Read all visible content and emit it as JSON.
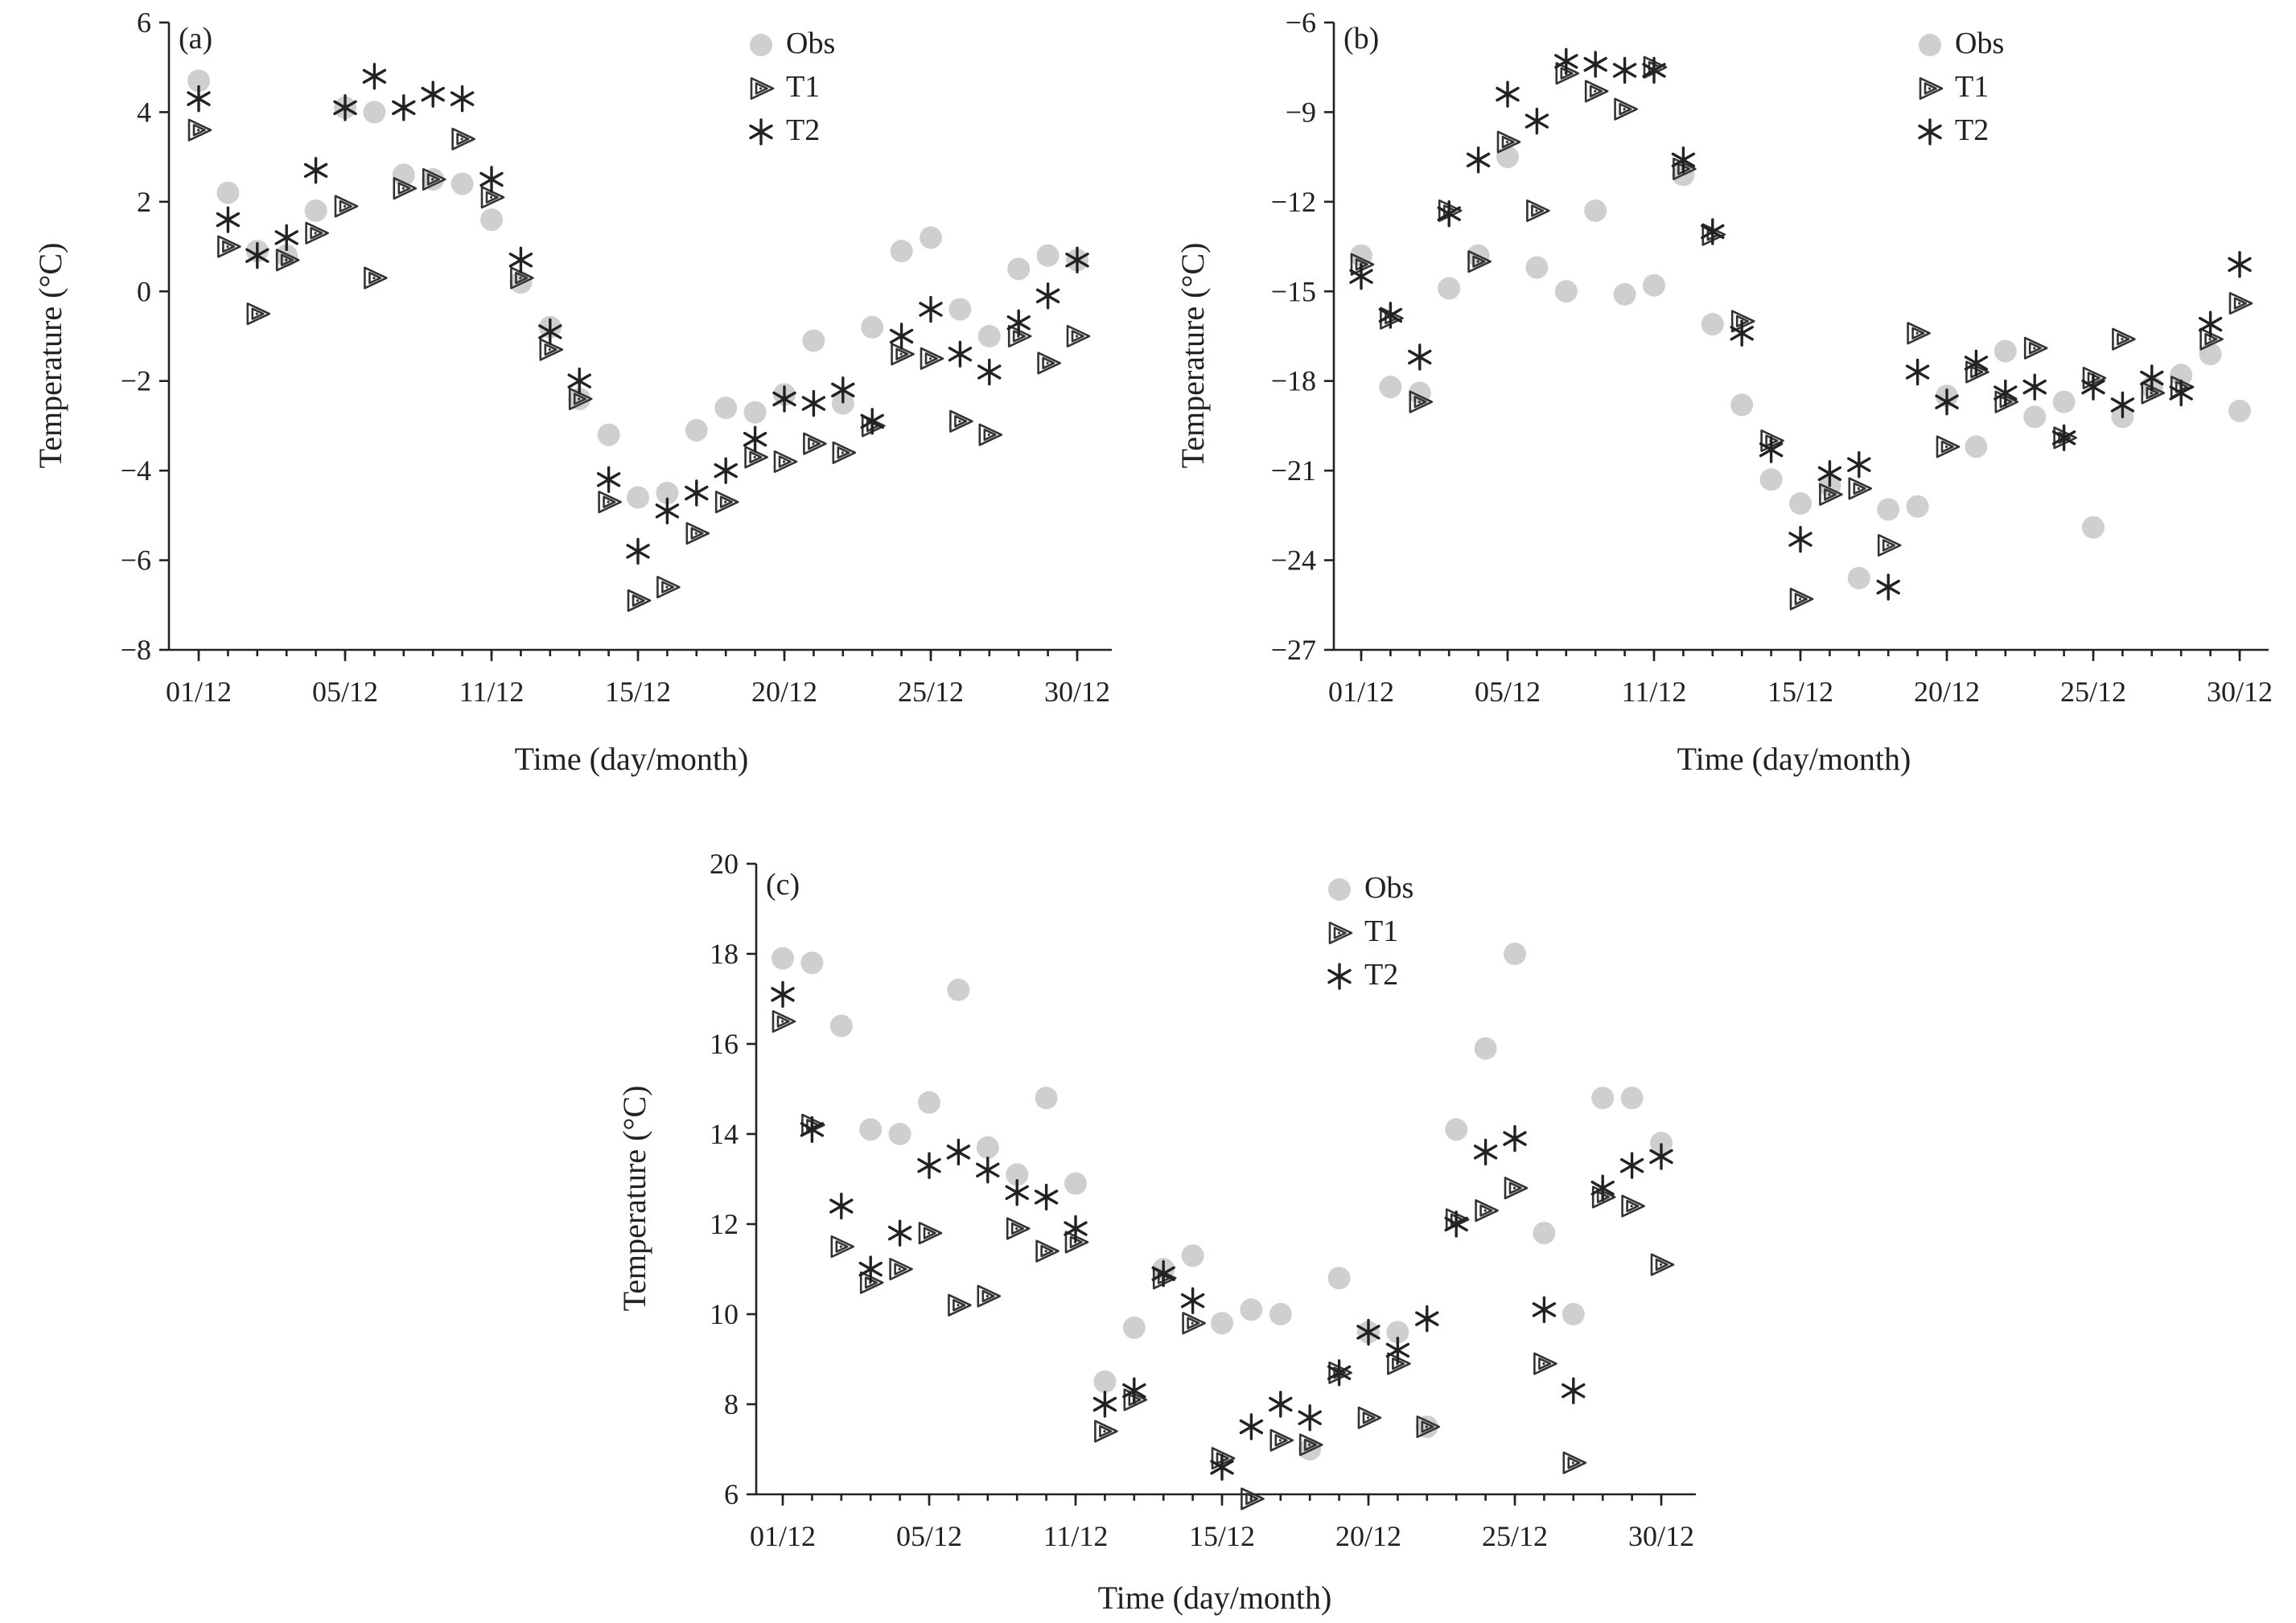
{
  "chart_data": [
    {
      "type": "scatter",
      "panel_label": "(a)",
      "xlabel": "Time (day/month)",
      "ylabel": "Temperature (°C)",
      "ylim": [
        -8,
        6
      ],
      "yticks": [
        "6",
        "4",
        "2",
        "0",
        "−2",
        "−4",
        "−6",
        "−8"
      ],
      "ytick_values": [
        6,
        4,
        2,
        0,
        -2,
        -4,
        -6,
        -8
      ],
      "xticks": [
        "01/12",
        "05/12",
        "11/12",
        "15/12",
        "20/12",
        "25/12",
        "30/12"
      ],
      "legend": [
        "Obs",
        "T1",
        "T2"
      ],
      "legend_position": "top-right",
      "series": [
        {
          "name": "Obs",
          "values": [
            4.7,
            2.2,
            0.9,
            0.8,
            1.8,
            4.1,
            4.0,
            2.6,
            2.5,
            2.4,
            1.6,
            0.2,
            -0.8,
            -2.4,
            -3.2,
            -4.6,
            -4.5,
            -3.1,
            -2.6,
            -2.7,
            -2.3,
            -1.1,
            -2.5,
            -0.8,
            0.9,
            1.2,
            -0.4,
            -1.0,
            0.5,
            0.8,
            0.7
          ]
        },
        {
          "name": "T1",
          "values": [
            3.6,
            1.0,
            -0.5,
            0.7,
            1.3,
            1.9,
            0.3,
            2.3,
            2.5,
            3.4,
            2.1,
            0.3,
            -1.3,
            -2.4,
            -4.7,
            -6.9,
            -6.6,
            -5.4,
            -4.7,
            -3.7,
            -3.8,
            -3.4,
            -3.6,
            -3.0,
            -1.4,
            -1.5,
            -2.9,
            -3.2,
            -1.0,
            -1.6,
            -1.0
          ]
        },
        {
          "name": "T2",
          "values": [
            4.3,
            1.6,
            0.8,
            1.2,
            2.7,
            4.1,
            4.8,
            4.1,
            4.4,
            4.3,
            2.5,
            0.7,
            -0.9,
            -2.0,
            -4.2,
            -5.8,
            -4.9,
            -4.5,
            -4.0,
            -3.3,
            -2.4,
            -2.5,
            -2.2,
            -2.9,
            -1.0,
            -0.4,
            -1.4,
            -1.8,
            -0.7,
            -0.1,
            0.7
          ]
        }
      ]
    },
    {
      "type": "scatter",
      "panel_label": "(b)",
      "xlabel": "Time (day/month)",
      "ylabel": "Temperature (°C)",
      "ylim": [
        -27,
        -6
      ],
      "yticks": [
        "−6",
        "−9",
        "−12",
        "−15",
        "−18",
        "−21",
        "−24",
        "−27"
      ],
      "ytick_values": [
        -6,
        -9,
        -12,
        -15,
        -18,
        -21,
        -24,
        -27
      ],
      "xticks": [
        "01/12",
        "05/12",
        "11/12",
        "15/12",
        "20/12",
        "25/12",
        "30/12"
      ],
      "legend": [
        "Obs",
        "T1",
        "T2"
      ],
      "legend_position": "top-right",
      "series": [
        {
          "name": "Obs",
          "values": [
            -13.8,
            -18.2,
            -18.4,
            -14.9,
            -13.8,
            -10.5,
            -14.2,
            -15.0,
            -12.3,
            -15.1,
            -14.8,
            -11.1,
            -16.1,
            -18.8,
            -21.3,
            -22.1,
            -21.5,
            -24.6,
            -22.3,
            -22.2,
            -18.5,
            -20.2,
            -17.0,
            -19.2,
            -18.7,
            -22.9,
            -19.2,
            -18.2,
            -17.8,
            -17.1,
            -19.0
          ]
        },
        {
          "name": "T1",
          "values": [
            -14.1,
            -15.9,
            -18.7,
            -12.3,
            -14.0,
            -10.0,
            -12.3,
            -7.7,
            -8.3,
            -8.9,
            -7.5,
            -10.9,
            -13.1,
            -16.0,
            -20.0,
            -25.3,
            -21.8,
            -21.6,
            -23.5,
            -16.4,
            -20.2,
            -17.7,
            -18.7,
            -16.9,
            -19.9,
            -17.9,
            -16.6,
            -18.4,
            -18.2,
            -16.6,
            -15.4
          ]
        },
        {
          "name": "T2",
          "values": [
            -14.5,
            -15.8,
            -17.2,
            -12.4,
            -10.6,
            -8.4,
            -9.3,
            -7.3,
            -7.4,
            -7.6,
            -7.6,
            -10.6,
            -13.0,
            -16.4,
            -20.3,
            -23.3,
            -21.1,
            -20.8,
            -24.9,
            -17.7,
            -18.7,
            -17.4,
            -18.4,
            -18.2,
            -19.9,
            -18.2,
            -18.8,
            -17.9,
            -18.4,
            -16.1,
            -14.1
          ]
        }
      ]
    },
    {
      "type": "scatter",
      "panel_label": "(c)",
      "xlabel": "Time (day/month)",
      "ylabel": "Temperature (°C)",
      "ylim": [
        6,
        20
      ],
      "yticks": [
        "20",
        "18",
        "16",
        "14",
        "12",
        "10",
        "8",
        "6"
      ],
      "ytick_values": [
        20,
        18,
        16,
        14,
        12,
        10,
        8,
        6
      ],
      "xticks": [
        "01/12",
        "05/12",
        "11/12",
        "15/12",
        "20/12",
        "25/12",
        "30/12"
      ],
      "legend": [
        "Obs",
        "T1",
        "T2"
      ],
      "legend_position": "top-right",
      "series": [
        {
          "name": "Obs",
          "values": [
            17.9,
            17.8,
            16.4,
            14.1,
            14.0,
            14.7,
            17.2,
            13.7,
            13.1,
            14.8,
            12.9,
            8.5,
            9.7,
            11.0,
            11.3,
            9.8,
            10.1,
            10.0,
            7.0,
            10.8,
            9.6,
            9.6,
            7.5,
            14.1,
            15.9,
            18.0,
            11.8,
            10.0,
            14.8,
            14.8,
            13.8
          ]
        },
        {
          "name": "T1",
          "values": [
            16.5,
            14.2,
            11.5,
            10.7,
            11.0,
            11.8,
            10.2,
            10.4,
            11.9,
            11.4,
            11.6,
            7.4,
            8.1,
            10.8,
            9.8,
            6.8,
            5.9,
            7.2,
            7.1,
            8.7,
            7.7,
            8.9,
            7.5,
            12.1,
            12.3,
            12.8,
            8.9,
            6.7,
            12.6,
            12.4,
            11.1
          ]
        },
        {
          "name": "T2",
          "values": [
            17.1,
            14.1,
            12.4,
            11.0,
            11.8,
            13.3,
            13.6,
            13.2,
            12.7,
            12.6,
            11.9,
            8.0,
            8.3,
            10.9,
            10.3,
            6.6,
            7.5,
            8.0,
            7.7,
            8.7,
            9.6,
            9.2,
            9.9,
            12.0,
            13.6,
            13.9,
            10.1,
            8.3,
            12.8,
            13.3,
            13.5
          ]
        }
      ]
    }
  ]
}
